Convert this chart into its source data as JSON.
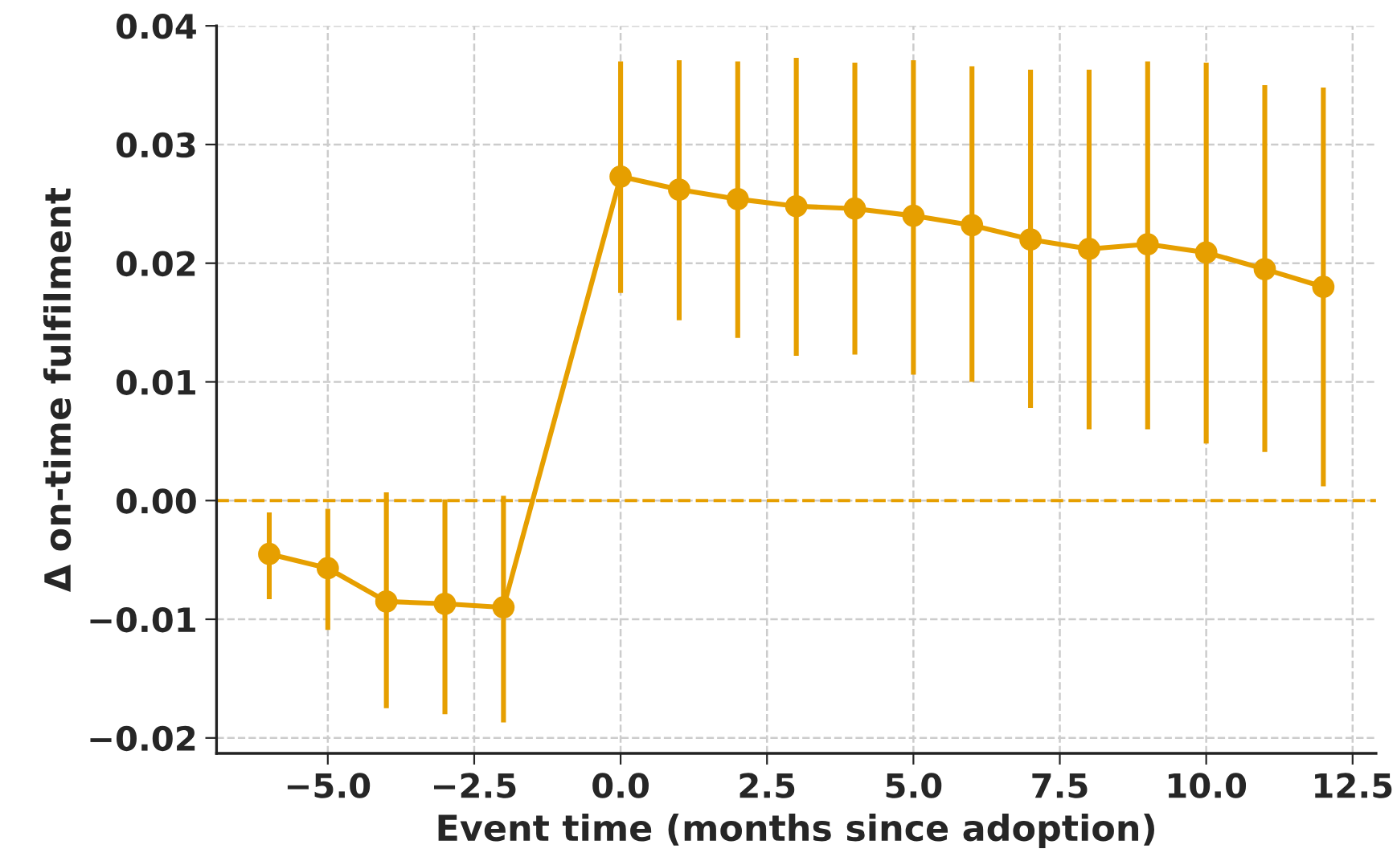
{
  "chart_data": {
    "type": "line",
    "xlabel": "Event time (months since adoption)",
    "ylabel": "Δ on-time fulfilment",
    "x": [
      -6,
      -5,
      -4,
      -3,
      -2,
      0,
      1,
      2,
      3,
      4,
      5,
      6,
      7,
      8,
      9,
      10,
      11,
      12
    ],
    "series": [
      {
        "color": "#e69f00",
        "values": [
          -0.0045,
          -0.0057,
          -0.0085,
          -0.0087,
          -0.009,
          0.0273,
          0.0262,
          0.0254,
          0.0248,
          0.0246,
          0.024,
          0.0232,
          0.022,
          0.0212,
          0.0216,
          0.0209,
          0.0195,
          0.018
        ],
        "errors": [
          [
            -0.0083,
            -0.001
          ],
          [
            -0.0109,
            -0.0007
          ],
          [
            -0.0175,
            0.0007
          ],
          [
            -0.018,
            0.0001
          ],
          [
            -0.0187,
            0.0004
          ],
          [
            0.0175,
            0.037
          ],
          [
            0.0152,
            0.0371
          ],
          [
            0.0137,
            0.037
          ],
          [
            0.0122,
            0.0373
          ],
          [
            0.0123,
            0.0369
          ],
          [
            0.0106,
            0.0371
          ],
          [
            0.01,
            0.0366
          ],
          [
            0.0078,
            0.0363
          ],
          [
            0.006,
            0.0363
          ],
          [
            0.006,
            0.037
          ],
          [
            0.0048,
            0.0369
          ],
          [
            0.0041,
            0.035
          ],
          [
            0.0012,
            0.0348
          ]
        ]
      }
    ],
    "marker": "circle",
    "line_style": "solid",
    "grid": true,
    "xlim": [
      -6.9,
      12.9
    ],
    "ylim": [
      -0.0213,
      0.04
    ],
    "xticks": [
      {
        "value": -5,
        "label": "−5.0"
      },
      {
        "value": -2.5,
        "label": "−2.5"
      },
      {
        "value": 0,
        "label": "0.0"
      },
      {
        "value": 2.5,
        "label": "2.5"
      },
      {
        "value": 5,
        "label": "5.0"
      },
      {
        "value": 7.5,
        "label": "7.5"
      },
      {
        "value": 10,
        "label": "10.0"
      },
      {
        "value": 12.5,
        "label": "12.5"
      }
    ],
    "yticks": [
      {
        "value": -0.02,
        "label": "−0.02"
      },
      {
        "value": -0.01,
        "label": "−0.01"
      },
      {
        "value": 0,
        "label": "0.00"
      },
      {
        "value": 0.01,
        "label": "0.01"
      },
      {
        "value": 0.02,
        "label": "0.02"
      },
      {
        "value": 0.03,
        "label": "0.03"
      },
      {
        "value": 0.04,
        "label": "0.04"
      }
    ],
    "ref_lines": [
      {
        "axis": "y",
        "value": 0,
        "color": "#e69f00",
        "line_style": "dashed"
      }
    ]
  }
}
